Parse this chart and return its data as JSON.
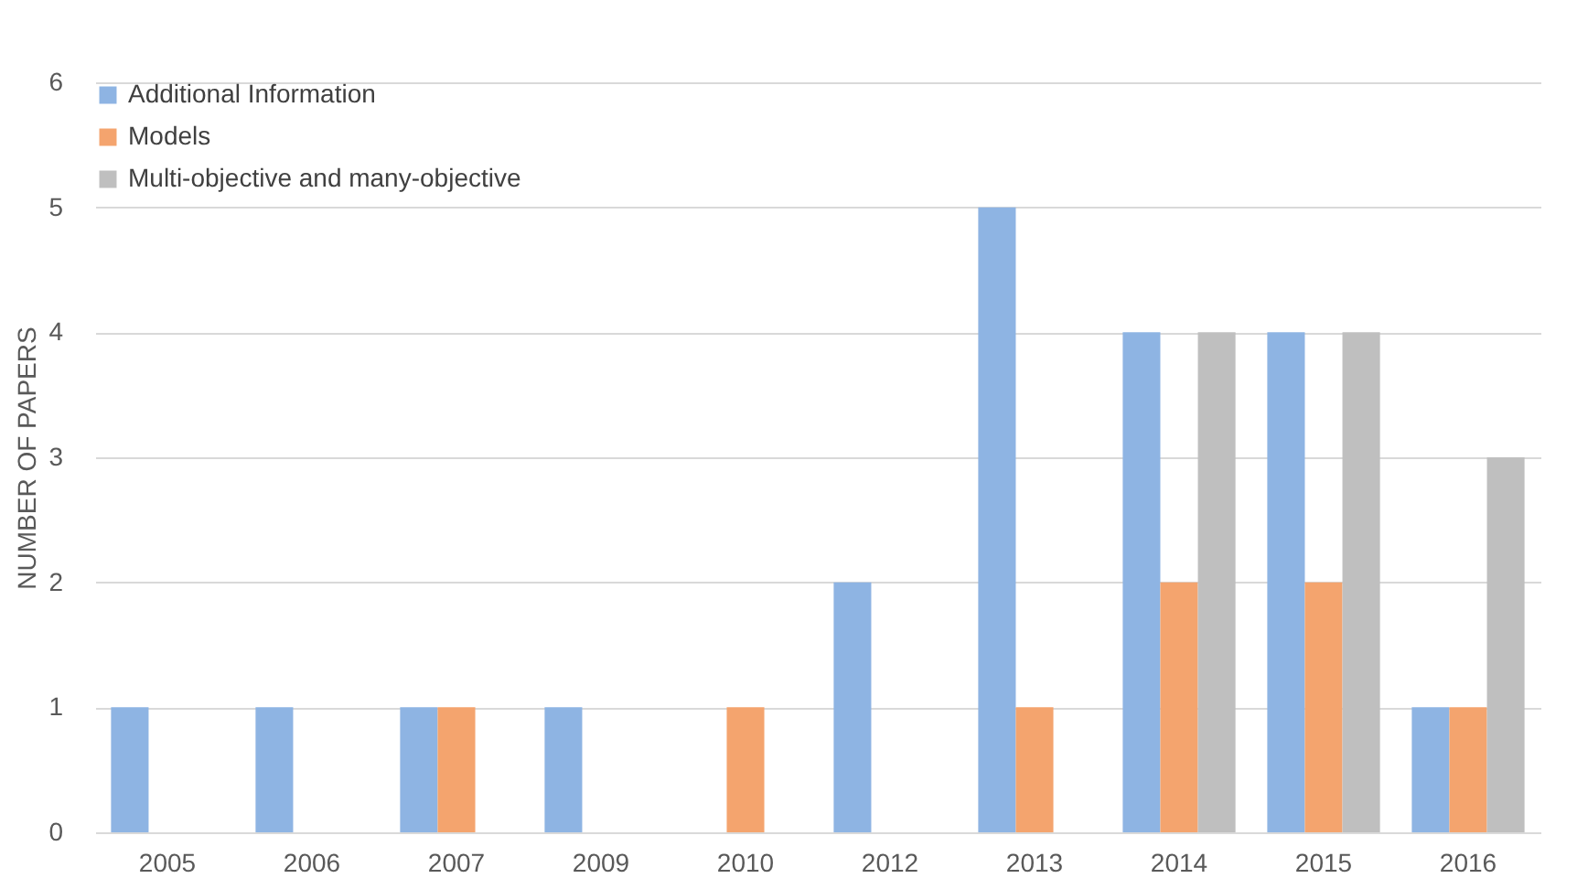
{
  "chart_data": {
    "type": "bar",
    "ylabel": "NUMBER OF PAPERS",
    "categories": [
      "2005",
      "2006",
      "2007",
      "2009",
      "2010",
      "2012",
      "2013",
      "2014",
      "2015",
      "2016"
    ],
    "series": [
      {
        "name": "Additional Information",
        "color": "#8eb4e3",
        "values": [
          1,
          1,
          1,
          1,
          0,
          2,
          5,
          4,
          4,
          1
        ]
      },
      {
        "name": "Models",
        "color": "#f4a46e",
        "values": [
          0,
          0,
          1,
          0,
          1,
          0,
          1,
          2,
          2,
          1
        ]
      },
      {
        "name": "Multi-objective and many-objective",
        "color": "#bfbfbf",
        "values": [
          0,
          0,
          0,
          0,
          0,
          0,
          0,
          4,
          4,
          3
        ]
      }
    ],
    "ylim": [
      0,
      6
    ],
    "yticks": [
      0,
      1,
      2,
      3,
      4,
      5,
      6
    ],
    "grid": "y",
    "legend": "top left"
  }
}
